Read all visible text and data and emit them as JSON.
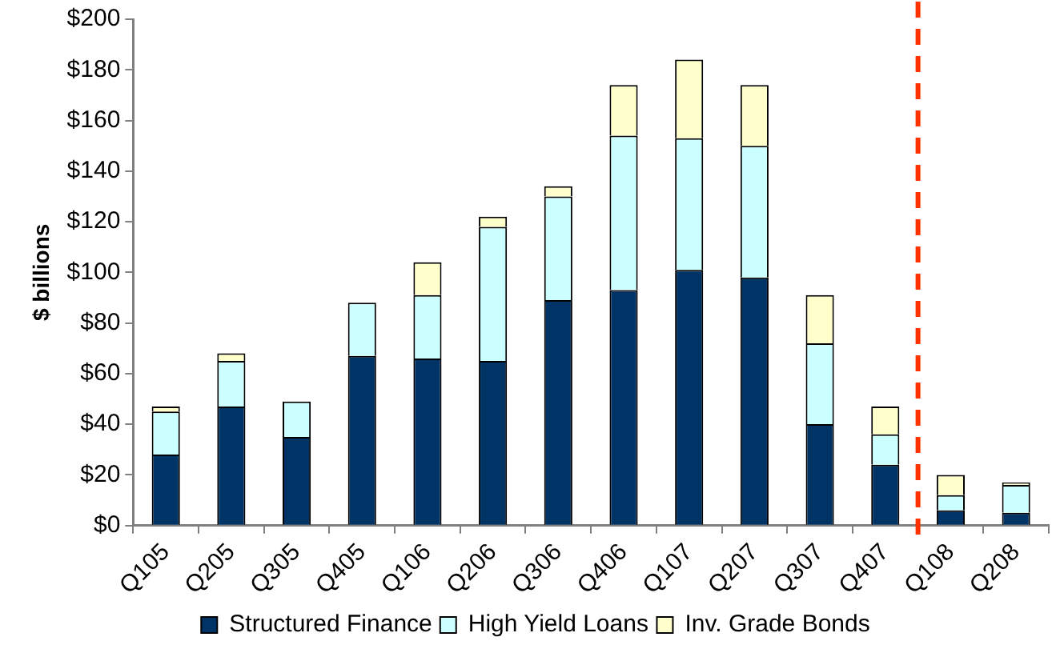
{
  "chart_data": {
    "type": "bar",
    "stacked": true,
    "ylabel": "$ billions",
    "categories": [
      "Q105",
      "Q205",
      "Q305",
      "Q405",
      "Q106",
      "Q206",
      "Q306",
      "Q406",
      "Q107",
      "Q207",
      "Q307",
      "Q407",
      "Q108",
      "Q208"
    ],
    "series": [
      {
        "name": "Structured Finance",
        "color": "#003366",
        "values": [
          28,
          47,
          35,
          67,
          66,
          65,
          89,
          93,
          101,
          98,
          40,
          24,
          6,
          5
        ]
      },
      {
        "name": "High Yield Loans",
        "color": "#ccffff",
        "values": [
          17,
          18,
          14,
          21,
          25,
          53,
          41,
          61,
          52,
          52,
          32,
          12,
          6,
          11
        ]
      },
      {
        "name": "Inv. Grade Bonds",
        "color": "#ffffcc",
        "values": [
          2,
          3,
          null,
          null,
          13,
          4,
          4,
          20,
          31,
          24,
          19,
          11,
          8,
          1
        ]
      }
    ],
    "ylim": [
      0,
      200
    ],
    "yticks": [
      {
        "value": 0,
        "label": "$0"
      },
      {
        "value": 20,
        "label": "$20"
      },
      {
        "value": 40,
        "label": "$40"
      },
      {
        "value": 60,
        "label": "$60"
      },
      {
        "value": 80,
        "label": "$80"
      },
      {
        "value": 100,
        "label": "$100"
      },
      {
        "value": 120,
        "label": "$120"
      },
      {
        "value": 140,
        "label": "$140"
      },
      {
        "value": 160,
        "label": "$160"
      },
      {
        "value": 180,
        "label": "$180"
      },
      {
        "value": 200,
        "label": "$200"
      }
    ],
    "grid": false,
    "legend": "bottom",
    "ref_lines": [
      {
        "axis": "x",
        "value": "Q108",
        "color": "#ff3300",
        "line_style": "dashed"
      }
    ]
  }
}
